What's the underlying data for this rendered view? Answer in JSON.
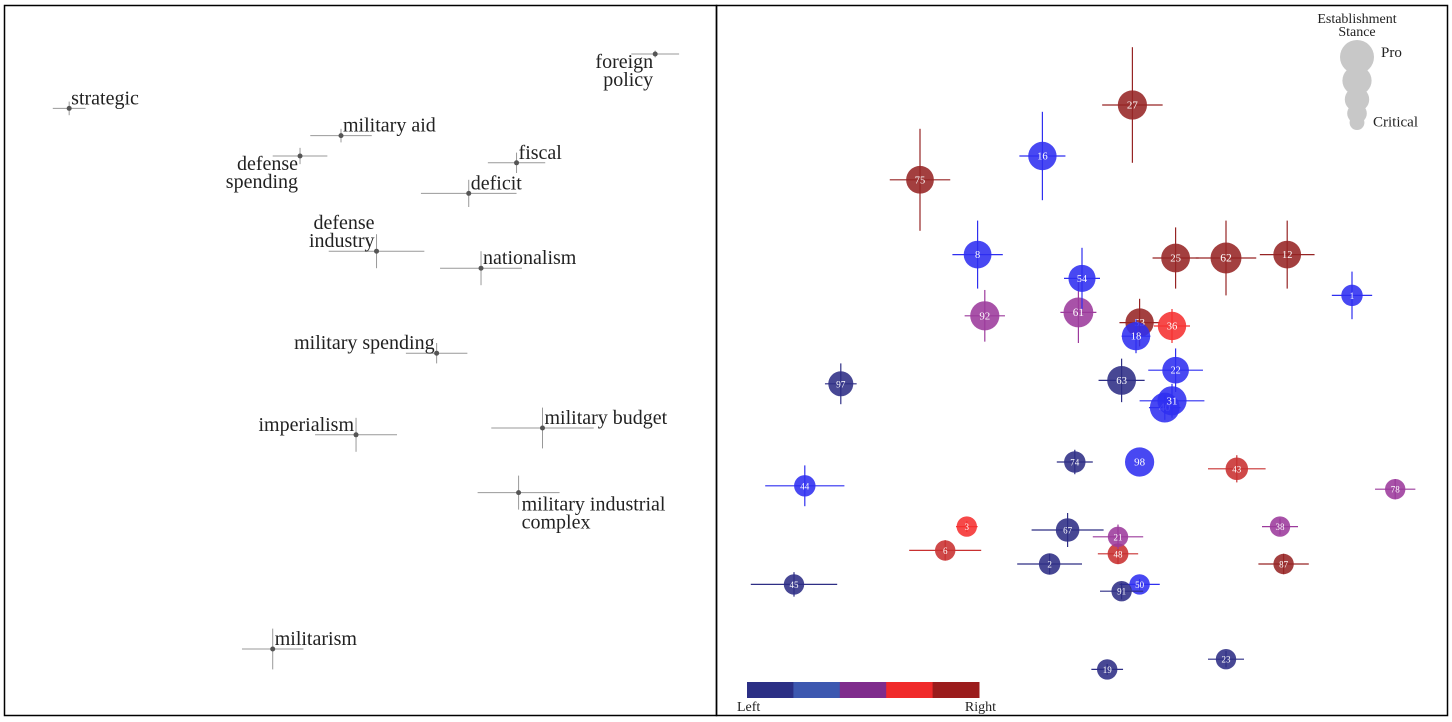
{
  "chart_data": [
    {
      "type": "scatter",
      "panel": "left",
      "title": "",
      "xlabel": "",
      "ylabel": "",
      "axes_visible": false,
      "xlim": [
        0,
        100
      ],
      "ylim": [
        0,
        100
      ],
      "point_color": "#555555",
      "errorbar_color": "#999999",
      "points": [
        {
          "label": "strategic",
          "lines": [
            "strategic"
          ],
          "x": 7.2,
          "y": 87.0,
          "ex": 2.4,
          "ey": 1.0,
          "label_pos": "upper-right"
        },
        {
          "label": "foreign policy",
          "lines": [
            "foreign",
            "policy"
          ],
          "x": 93.0,
          "y": 95.0,
          "ex": 3.5,
          "ey": 0.5,
          "label_pos": "lower-left"
        },
        {
          "label": "military aid",
          "lines": [
            "military aid"
          ],
          "x": 47.0,
          "y": 83.0,
          "ex": 4.5,
          "ey": 1.0,
          "label_pos": "upper-right"
        },
        {
          "label": "defense spending",
          "lines": [
            "defense",
            "spending"
          ],
          "x": 41.0,
          "y": 80.0,
          "ex": 4.0,
          "ey": 1.2,
          "label_pos": "lower-left"
        },
        {
          "label": "fiscal",
          "lines": [
            "fiscal"
          ],
          "x": 72.7,
          "y": 79.0,
          "ex": 4.2,
          "ey": 1.5,
          "label_pos": "upper-right"
        },
        {
          "label": "deficit",
          "lines": [
            "deficit"
          ],
          "x": 65.7,
          "y": 74.5,
          "ex": 7.0,
          "ey": 2.0,
          "label_pos": "upper-right"
        },
        {
          "label": "defense industry",
          "lines": [
            "defense",
            "industry"
          ],
          "x": 52.2,
          "y": 66.0,
          "ex": 7.0,
          "ey": 2.5,
          "label_pos": "upper-left"
        },
        {
          "label": "nationalism",
          "lines": [
            "nationalism"
          ],
          "x": 67.5,
          "y": 63.5,
          "ex": 6.0,
          "ey": 2.5,
          "label_pos": "upper-right"
        },
        {
          "label": "military spending",
          "lines": [
            "military spending"
          ],
          "x": 61.0,
          "y": 51.0,
          "ex": 4.5,
          "ey": 1.5,
          "label_pos": "upper-left"
        },
        {
          "label": "imperialism",
          "lines": [
            "imperialism"
          ],
          "x": 49.2,
          "y": 39.0,
          "ex": 6.0,
          "ey": 2.5,
          "label_pos": "upper-left"
        },
        {
          "label": "military budget",
          "lines": [
            "military budget"
          ],
          "x": 76.5,
          "y": 40.0,
          "ex": 7.5,
          "ey": 3.0,
          "label_pos": "upper-right"
        },
        {
          "label": "military industrial complex",
          "lines": [
            "military industrial",
            "complex"
          ],
          "x": 73.0,
          "y": 30.5,
          "ex": 6.0,
          "ey": 2.5,
          "label_pos": "lower-right"
        },
        {
          "label": "militarism",
          "lines": [
            "militarism"
          ],
          "x": 37.0,
          "y": 7.5,
          "ex": 4.5,
          "ey": 3.0,
          "label_pos": "upper-right"
        }
      ]
    },
    {
      "type": "scatter",
      "panel": "right",
      "title": "",
      "xlabel": "",
      "ylabel": "",
      "axes_visible": false,
      "xlim": [
        0,
        100
      ],
      "ylim": [
        0,
        100
      ],
      "size_legend": {
        "title": [
          "Establishment",
          "Stance"
        ],
        "high_label": "Pro",
        "low_label": "Critical",
        "color": "#c8c8c8",
        "levels": [
          1.0,
          0.8,
          0.6,
          0.4,
          0.2
        ]
      },
      "color_legend": {
        "left_label": "Left",
        "right_label": "Right",
        "colors": [
          "#2b2f85",
          "#3d58b0",
          "#7f2c8c",
          "#f02a2a",
          "#9b1c1c"
        ]
      },
      "points": [
        {
          "id": "27",
          "x": 57.0,
          "y": 87.5,
          "ex": 4.2,
          "ey": 8.5,
          "stance": 0.82,
          "color": "#962424"
        },
        {
          "id": "16",
          "x": 44.5,
          "y": 80.0,
          "ex": 3.2,
          "ey": 6.5,
          "stance": 0.78,
          "color": "#2f2ff0"
        },
        {
          "id": "75",
          "x": 27.5,
          "y": 76.5,
          "ex": 4.2,
          "ey": 7.5,
          "stance": 0.75,
          "color": "#962424"
        },
        {
          "id": "8",
          "x": 35.5,
          "y": 65.5,
          "ex": 3.5,
          "ey": 5.0,
          "stance": 0.75,
          "color": "#2f2ff0"
        },
        {
          "id": "54",
          "x": 50.0,
          "y": 62.0,
          "ex": 2.5,
          "ey": 4.5,
          "stance": 0.72,
          "color": "#2f2ff0"
        },
        {
          "id": "25",
          "x": 63.0,
          "y": 65.0,
          "ex": 3.2,
          "ey": 4.5,
          "stance": 0.8,
          "color": "#962424"
        },
        {
          "id": "62",
          "x": 70.0,
          "y": 65.0,
          "ex": 4.2,
          "ey": 5.5,
          "stance": 0.9,
          "color": "#962424"
        },
        {
          "id": "12",
          "x": 78.5,
          "y": 65.5,
          "ex": 3.8,
          "ey": 5.0,
          "stance": 0.75,
          "color": "#962424"
        },
        {
          "id": "1",
          "x": 87.5,
          "y": 59.5,
          "ex": 2.8,
          "ey": 3.5,
          "stance": 0.45,
          "color": "#2f2ff0"
        },
        {
          "id": "92",
          "x": 36.5,
          "y": 56.5,
          "ex": 2.8,
          "ey": 3.8,
          "stance": 0.82,
          "color": "#9c3a9c"
        },
        {
          "id": "61",
          "x": 49.5,
          "y": 57.0,
          "ex": 2.5,
          "ey": 4.5,
          "stance": 0.85,
          "color": "#9c3a9c"
        },
        {
          "id": "53",
          "x": 58.0,
          "y": 55.5,
          "ex": 2.8,
          "ey": 3.5,
          "stance": 0.78,
          "color": "#962424"
        },
        {
          "id": "36",
          "x": 62.5,
          "y": 55.0,
          "ex": 2.5,
          "ey": 2.5,
          "stance": 0.78,
          "color": "#f53030"
        },
        {
          "id": "18",
          "x": 57.5,
          "y": 53.5,
          "ex": 2.0,
          "ey": 2.5,
          "stance": 0.78,
          "color": "#2f2ff0"
        },
        {
          "id": "97",
          "x": 16.5,
          "y": 46.5,
          "ex": 2.2,
          "ey": 3.0,
          "stance": 0.62,
          "color": "#2e2e85"
        },
        {
          "id": "63",
          "x": 55.5,
          "y": 47.0,
          "ex": 3.2,
          "ey": 3.2,
          "stance": 0.8,
          "color": "#2e2e85"
        },
        {
          "id": "22",
          "x": 63.0,
          "y": 48.5,
          "ex": 3.8,
          "ey": 3.2,
          "stance": 0.7,
          "color": "#2f2ff0"
        },
        {
          "id": "31",
          "x": 62.5,
          "y": 44.0,
          "ex": 4.5,
          "ey": 2.5,
          "stance": 0.82,
          "color": "#2f2ff0"
        },
        {
          "id": "40",
          "x": 61.5,
          "y": 43.0,
          "ex": 2.2,
          "ey": 1.8,
          "stance": 0.85,
          "color": "#2f2ff0"
        },
        {
          "id": "74",
          "x": 49.0,
          "y": 35.0,
          "ex": 2.5,
          "ey": 1.8,
          "stance": 0.45,
          "color": "#2e2e85"
        },
        {
          "id": "98",
          "x": 58.0,
          "y": 35.0,
          "ex": 0.0,
          "ey": 0.0,
          "stance": 0.82,
          "color": "#2f2ff0"
        },
        {
          "id": "43",
          "x": 71.5,
          "y": 34.0,
          "ex": 4.0,
          "ey": 2.0,
          "stance": 0.5,
          "color": "#c83030"
        },
        {
          "id": "44",
          "x": 11.5,
          "y": 31.5,
          "ex": 5.5,
          "ey": 3.0,
          "stance": 0.45,
          "color": "#2f2ff0"
        },
        {
          "id": "78",
          "x": 93.5,
          "y": 31.0,
          "ex": 2.8,
          "ey": 1.5,
          "stance": 0.4,
          "color": "#9c3a9c"
        },
        {
          "id": "3",
          "x": 34.0,
          "y": 25.5,
          "ex": 1.5,
          "ey": 0.8,
          "stance": 0.4,
          "color": "#f53030"
        },
        {
          "id": "67",
          "x": 48.0,
          "y": 25.0,
          "ex": 5.0,
          "ey": 2.5,
          "stance": 0.55,
          "color": "#2e2e85"
        },
        {
          "id": "21",
          "x": 55.0,
          "y": 24.0,
          "ex": 3.5,
          "ey": 1.8,
          "stance": 0.4,
          "color": "#9c3a9c"
        },
        {
          "id": "38",
          "x": 77.5,
          "y": 25.5,
          "ex": 2.5,
          "ey": 1.2,
          "stance": 0.4,
          "color": "#9c3a9c"
        },
        {
          "id": "6",
          "x": 31.0,
          "y": 22.0,
          "ex": 5.0,
          "ey": 1.5,
          "stance": 0.4,
          "color": "#c83030"
        },
        {
          "id": "48",
          "x": 55.0,
          "y": 21.5,
          "ex": 2.8,
          "ey": 1.5,
          "stance": 0.42,
          "color": "#c83030"
        },
        {
          "id": "2",
          "x": 45.5,
          "y": 20.0,
          "ex": 4.5,
          "ey": 1.5,
          "stance": 0.45,
          "color": "#2e2e85"
        },
        {
          "id": "87",
          "x": 78.0,
          "y": 20.0,
          "ex": 3.5,
          "ey": 1.5,
          "stance": 0.4,
          "color": "#962424"
        },
        {
          "id": "45",
          "x": 10.0,
          "y": 17.0,
          "ex": 6.0,
          "ey": 1.8,
          "stance": 0.4,
          "color": "#2e2e85"
        },
        {
          "id": "50",
          "x": 58.0,
          "y": 17.0,
          "ex": 2.8,
          "ey": 0.8,
          "stance": 0.4,
          "color": "#2f2ff0"
        },
        {
          "id": "91",
          "x": 55.5,
          "y": 16.0,
          "ex": 3.0,
          "ey": 1.2,
          "stance": 0.4,
          "color": "#2e2e85"
        },
        {
          "id": "23",
          "x": 70.0,
          "y": 6.0,
          "ex": 2.5,
          "ey": 1.2,
          "stance": 0.4,
          "color": "#2e2e85"
        },
        {
          "id": "19",
          "x": 53.5,
          "y": 4.5,
          "ex": 2.2,
          "ey": 0.8,
          "stance": 0.4,
          "color": "#2e2e85"
        }
      ]
    }
  ]
}
